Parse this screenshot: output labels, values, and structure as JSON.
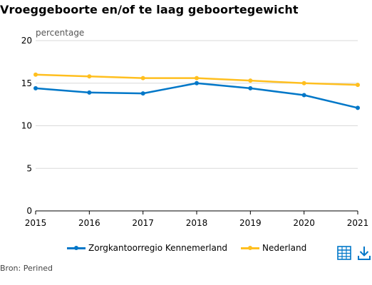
{
  "title": "Vroeggeboorte en/of te laag geboortegewicht",
  "source": "Bron: Perined",
  "colors": {
    "grid": "#d9d9d9",
    "axis": "#000000",
    "series_1": "#0077c8",
    "series_2": "#ffbf1f"
  },
  "icons": {
    "table": "table-icon",
    "download": "download-icon"
  },
  "chart_data": {
    "type": "line",
    "title": "Vroeggeboorte en/of te laag geboortegewicht",
    "ylabel": "percentage",
    "xlabel": "",
    "x": [
      "2015",
      "2016",
      "2017",
      "2018",
      "2019",
      "2020",
      "2021"
    ],
    "ylim": [
      0,
      20
    ],
    "yticks": [
      0,
      5,
      10,
      15,
      20
    ],
    "grid": true,
    "legend": "bottom",
    "series": [
      {
        "name": "Zorgkantoorregio Kennemerland",
        "color": "#0077c8",
        "values": [
          14.4,
          13.9,
          13.8,
          15.0,
          14.4,
          13.6,
          12.1
        ]
      },
      {
        "name": "Nederland",
        "color": "#ffbf1f",
        "values": [
          16.0,
          15.8,
          15.6,
          15.6,
          15.3,
          15.0,
          14.8
        ]
      }
    ]
  }
}
